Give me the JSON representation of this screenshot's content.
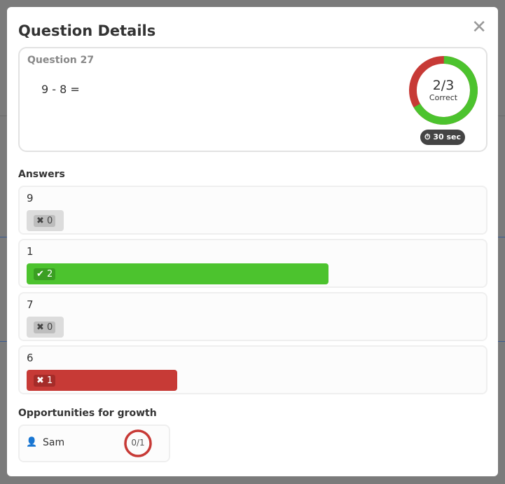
{
  "modal": {
    "title": "Question Details",
    "close_icon": "close-icon"
  },
  "question": {
    "number_label": "Question 27",
    "text": "9 - 8 =",
    "correct": 2,
    "total": 3,
    "score_text": "2/3",
    "score_label": "Correct",
    "timer_icon": "stopwatch-icon",
    "timer_text": "30 sec"
  },
  "colors": {
    "correct": "#4cc32e",
    "incorrect": "#c73a36",
    "neutral": "#dcdcdc"
  },
  "answers_title": "Answers",
  "answers": [
    {
      "label": "9",
      "count": "0",
      "correct": false
    },
    {
      "label": "1",
      "count": "2",
      "correct": true
    },
    {
      "label": "7",
      "count": "0",
      "correct": false
    },
    {
      "label": "6",
      "count": "1",
      "correct": false
    }
  ],
  "growth": {
    "title": "Opportunities for growth",
    "students": [
      {
        "name": "Sam",
        "score_text": "0/1",
        "correct": 0,
        "total": 1,
        "icon": "user-icon"
      }
    ]
  }
}
